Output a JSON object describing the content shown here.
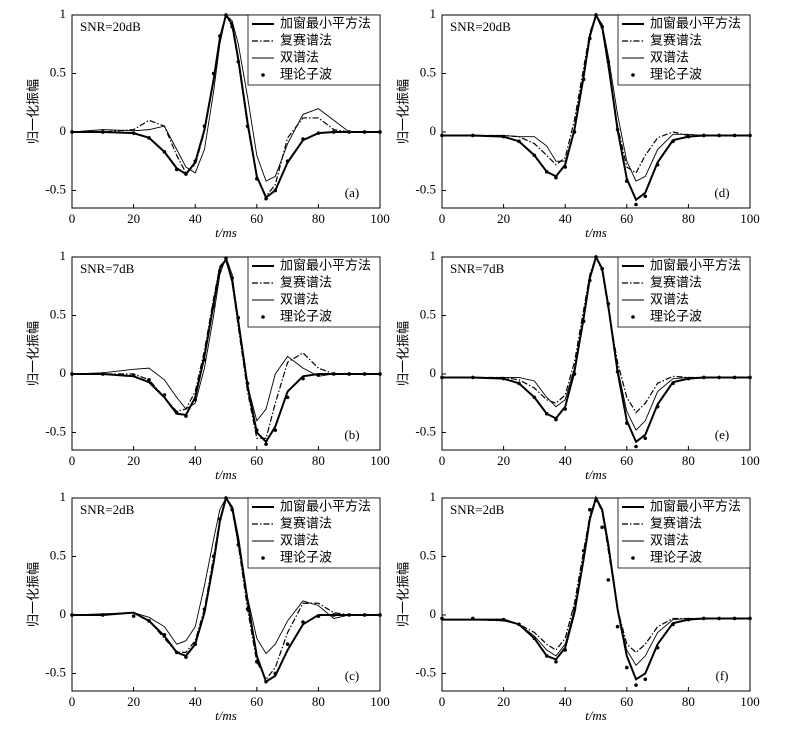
{
  "chart_data": [
    {
      "type": "line",
      "annotation": "SNR=20dB",
      "panel_label": "(a)",
      "x_label": "t/ms",
      "y_label": "归一化振幅",
      "xlim": [
        0,
        100
      ],
      "ylim": [
        -0.65,
        1
      ],
      "xticks": [
        0,
        20,
        40,
        60,
        80,
        100
      ],
      "yticks": [
        -0.5,
        0,
        0.5,
        1
      ],
      "x": [
        0,
        10,
        20,
        25,
        30,
        34,
        37,
        40,
        43,
        46,
        48,
        50,
        52,
        54,
        57,
        60,
        63,
        66,
        70,
        75,
        80,
        85,
        90,
        95,
        100
      ],
      "series": [
        {
          "name": "加窗最小平方法",
          "color": "#000000",
          "style": "thick",
          "values": [
            0,
            0,
            -0.01,
            -0.05,
            -0.17,
            -0.31,
            -0.36,
            -0.26,
            0.02,
            0.45,
            0.8,
            1,
            0.92,
            0.62,
            0.08,
            -0.38,
            -0.56,
            -0.5,
            -0.26,
            -0.07,
            -0.01,
            0,
            0,
            0,
            0
          ]
        },
        {
          "name": "复赛谱法",
          "color": "#000000",
          "style": "dashdot",
          "values": [
            0,
            0,
            0.02,
            0.1,
            0.05,
            -0.2,
            -0.35,
            -0.28,
            0,
            0.45,
            0.8,
            1,
            0.9,
            0.6,
            0.05,
            -0.38,
            -0.55,
            -0.45,
            -0.05,
            0.12,
            0.12,
            0.02,
            0,
            0,
            0
          ]
        },
        {
          "name": "双谱法",
          "color": "#000000",
          "style": "thin",
          "values": [
            0,
            0.02,
            0.01,
            0.02,
            0.05,
            -0.15,
            -0.3,
            -0.35,
            -0.15,
            0.35,
            0.75,
            1,
            0.95,
            0.75,
            0.3,
            -0.2,
            -0.42,
            -0.38,
            -0.1,
            0.15,
            0.2,
            0.1,
            0,
            0,
            0
          ]
        },
        {
          "name": "理论子波",
          "color": "#000000",
          "style": "markers",
          "values": [
            0,
            0,
            -0.01,
            -0.05,
            -0.17,
            -0.32,
            -0.36,
            -0.25,
            0.05,
            0.5,
            0.82,
            1,
            0.9,
            0.6,
            0.05,
            -0.4,
            -0.57,
            -0.5,
            -0.25,
            -0.06,
            -0.01,
            0,
            0,
            0,
            0
          ]
        }
      ]
    },
    {
      "type": "line",
      "annotation": "SNR=7dB",
      "panel_label": "(b)",
      "x_label": "t/ms",
      "y_label": "归一化振幅",
      "xlim": [
        0,
        100
      ],
      "ylim": [
        -0.65,
        1
      ],
      "xticks": [
        0,
        20,
        40,
        60,
        80,
        100
      ],
      "yticks": [
        -0.5,
        0,
        0.5,
        1
      ],
      "x": [
        0,
        10,
        20,
        25,
        30,
        34,
        37,
        40,
        43,
        46,
        48,
        50,
        52,
        54,
        57,
        60,
        63,
        66,
        70,
        75,
        80,
        85,
        90,
        95,
        100
      ],
      "series": [
        {
          "name": "加窗最小平方法",
          "color": "#000000",
          "style": "thick",
          "values": [
            0,
            0,
            -0.02,
            -0.07,
            -0.2,
            -0.34,
            -0.35,
            -0.2,
            0.15,
            0.6,
            0.9,
            0.98,
            0.8,
            0.45,
            -0.1,
            -0.5,
            -0.58,
            -0.45,
            -0.15,
            -0.02,
            0,
            0,
            0,
            0,
            0
          ]
        },
        {
          "name": "复赛谱法",
          "color": "#000000",
          "style": "dashdot",
          "values": [
            0,
            0,
            0,
            -0.05,
            -0.2,
            -0.32,
            -0.3,
            -0.15,
            0.2,
            0.65,
            0.92,
            0.98,
            0.78,
            0.4,
            -0.15,
            -0.55,
            -0.55,
            -0.25,
            0.1,
            0.18,
            0.05,
            0,
            0,
            0,
            0
          ]
        },
        {
          "name": "双谱法",
          "color": "#000000",
          "style": "thin",
          "values": [
            0,
            0.01,
            0.04,
            0.05,
            -0.05,
            -0.2,
            -0.3,
            -0.25,
            0.05,
            0.5,
            0.85,
            1,
            0.85,
            0.45,
            -0.1,
            -0.4,
            -0.3,
            0,
            0.15,
            0.05,
            -0.02,
            0,
            0,
            0,
            0
          ]
        },
        {
          "name": "理论子波",
          "color": "#000000",
          "style": "markers",
          "values": [
            0,
            0,
            -0.01,
            -0.05,
            -0.18,
            -0.33,
            -0.36,
            -0.22,
            0.12,
            0.58,
            0.88,
            0.99,
            0.82,
            0.48,
            -0.08,
            -0.48,
            -0.6,
            -0.48,
            -0.2,
            -0.04,
            -0.01,
            0,
            0,
            0,
            0
          ]
        }
      ]
    },
    {
      "type": "line",
      "annotation": "SNR=2dB",
      "panel_label": "(c)",
      "x_label": "t/ms",
      "y_label": "归一化振幅",
      "xlim": [
        0,
        100
      ],
      "ylim": [
        -0.65,
        1
      ],
      "xticks": [
        0,
        20,
        40,
        60,
        80,
        100
      ],
      "yticks": [
        -0.5,
        0,
        0.5,
        1
      ],
      "x": [
        0,
        10,
        20,
        25,
        30,
        34,
        37,
        40,
        43,
        46,
        48,
        50,
        52,
        54,
        57,
        60,
        63,
        66,
        70,
        75,
        80,
        85,
        90,
        95,
        100
      ],
      "series": [
        {
          "name": "加窗最小平方法",
          "color": "#000000",
          "style": "thick",
          "values": [
            0,
            0,
            0.02,
            -0.05,
            -0.18,
            -0.32,
            -0.35,
            -0.25,
            0.02,
            0.45,
            0.8,
            1,
            0.92,
            0.65,
            0.12,
            -0.35,
            -0.57,
            -0.52,
            -0.3,
            -0.08,
            0,
            0,
            0,
            0,
            0
          ]
        },
        {
          "name": "复赛谱法",
          "color": "#000000",
          "style": "dashdot",
          "values": [
            0,
            0,
            0.02,
            -0.05,
            -0.2,
            -0.32,
            -0.32,
            -0.22,
            0.05,
            0.5,
            0.82,
            1,
            0.9,
            0.6,
            0.05,
            -0.4,
            -0.55,
            -0.45,
            -0.15,
            0.1,
            0.1,
            0.02,
            0,
            0,
            0
          ]
        },
        {
          "name": "双谱法",
          "color": "#000000",
          "style": "thin",
          "values": [
            0,
            0.01,
            0.02,
            -0.02,
            -0.1,
            -0.25,
            -0.22,
            -0.1,
            0.25,
            0.65,
            0.9,
            1,
            0.9,
            0.6,
            0.15,
            -0.2,
            -0.33,
            -0.25,
            -0.05,
            0.12,
            0.08,
            -0.03,
            0,
            0,
            0
          ]
        },
        {
          "name": "理论子波",
          "color": "#000000",
          "style": "markers",
          "values": [
            0,
            0,
            -0.01,
            -0.05,
            -0.17,
            -0.32,
            -0.36,
            -0.25,
            0.05,
            0.5,
            0.82,
            1,
            0.9,
            0.6,
            0.05,
            -0.4,
            -0.57,
            -0.5,
            -0.25,
            -0.06,
            -0.01,
            0,
            0,
            0,
            0
          ]
        }
      ]
    },
    {
      "type": "line",
      "annotation": "SNR=20dB",
      "panel_label": "(d)",
      "x_label": "t/ms",
      "y_label": "归一化振幅",
      "xlim": [
        0,
        100
      ],
      "ylim": [
        -0.65,
        1
      ],
      "xticks": [
        0,
        20,
        40,
        60,
        80,
        100
      ],
      "yticks": [
        -0.5,
        0,
        0.5,
        1
      ],
      "x": [
        0,
        10,
        20,
        25,
        30,
        34,
        37,
        40,
        43,
        46,
        48,
        50,
        52,
        54,
        57,
        60,
        63,
        66,
        70,
        75,
        80,
        85,
        90,
        95,
        100
      ],
      "series": [
        {
          "name": "加窗最小平方法",
          "color": "#000000",
          "style": "thick",
          "values": [
            -0.03,
            -0.03,
            -0.04,
            -0.08,
            -0.2,
            -0.34,
            -0.38,
            -0.28,
            0.02,
            0.48,
            0.82,
            1,
            0.9,
            0.58,
            0.02,
            -0.4,
            -0.58,
            -0.52,
            -0.26,
            -0.07,
            -0.04,
            -0.03,
            -0.03,
            -0.03,
            -0.03
          ]
        },
        {
          "name": "复赛谱法",
          "color": "#000000",
          "style": "dashdot",
          "values": [
            -0.03,
            -0.03,
            -0.03,
            -0.04,
            -0.1,
            -0.2,
            -0.28,
            -0.22,
            0.1,
            0.55,
            0.85,
            1,
            0.88,
            0.55,
            0.05,
            -0.3,
            -0.35,
            -0.2,
            -0.05,
            0,
            -0.03,
            -0.03,
            -0.03,
            -0.03,
            -0.03
          ]
        },
        {
          "name": "双谱法",
          "color": "#000000",
          "style": "thin",
          "values": [
            -0.03,
            -0.03,
            -0.03,
            -0.04,
            -0.04,
            -0.12,
            -0.25,
            -0.25,
            0,
            0.45,
            0.8,
            1,
            0.92,
            0.65,
            0.15,
            -0.25,
            -0.42,
            -0.38,
            -0.15,
            -0.02,
            -0.02,
            -0.03,
            -0.03,
            -0.03,
            -0.03
          ]
        },
        {
          "name": "理论子波",
          "color": "#000000",
          "style": "markers",
          "values": [
            -0.03,
            -0.03,
            -0.04,
            -0.08,
            -0.2,
            -0.34,
            -0.39,
            -0.3,
            0,
            0.45,
            0.8,
            1,
            0.9,
            0.6,
            0.02,
            -0.42,
            -0.62,
            -0.55,
            -0.28,
            -0.08,
            -0.04,
            -0.03,
            -0.03,
            -0.03,
            -0.03
          ]
        }
      ]
    },
    {
      "type": "line",
      "annotation": "SNR=7dB",
      "panel_label": "(e)",
      "x_label": "t/ms",
      "y_label": "归一化振幅",
      "xlim": [
        0,
        100
      ],
      "ylim": [
        -0.65,
        1
      ],
      "xticks": [
        0,
        20,
        40,
        60,
        80,
        100
      ],
      "yticks": [
        -0.5,
        0,
        0.5,
        1
      ],
      "x": [
        0,
        10,
        20,
        25,
        30,
        34,
        37,
        40,
        43,
        46,
        48,
        50,
        52,
        54,
        57,
        60,
        63,
        66,
        70,
        75,
        80,
        85,
        90,
        95,
        100
      ],
      "series": [
        {
          "name": "加窗最小平方法",
          "color": "#000000",
          "style": "thick",
          "values": [
            -0.03,
            -0.03,
            -0.04,
            -0.08,
            -0.2,
            -0.34,
            -0.38,
            -0.28,
            0.02,
            0.48,
            0.82,
            1,
            0.9,
            0.58,
            0.02,
            -0.4,
            -0.58,
            -0.52,
            -0.26,
            -0.07,
            -0.04,
            -0.03,
            -0.03,
            -0.03,
            -0.03
          ]
        },
        {
          "name": "复赛谱法",
          "color": "#000000",
          "style": "dashdot",
          "values": [
            -0.03,
            -0.03,
            -0.03,
            -0.05,
            -0.12,
            -0.22,
            -0.25,
            -0.18,
            0.1,
            0.55,
            0.85,
            1,
            0.88,
            0.55,
            0.1,
            -0.2,
            -0.33,
            -0.25,
            -0.08,
            -0.02,
            -0.03,
            -0.03,
            -0.03,
            -0.03,
            -0.03
          ]
        },
        {
          "name": "双谱法",
          "color": "#000000",
          "style": "thin",
          "values": [
            -0.03,
            -0.03,
            -0.03,
            -0.03,
            -0.06,
            -0.2,
            -0.28,
            -0.22,
            0.05,
            0.5,
            0.82,
            1,
            0.9,
            0.6,
            0.05,
            -0.32,
            -0.48,
            -0.4,
            -0.15,
            -0.04,
            -0.03,
            -0.03,
            -0.03,
            -0.03,
            -0.03
          ]
        },
        {
          "name": "理论子波",
          "color": "#000000",
          "style": "markers",
          "values": [
            -0.03,
            -0.03,
            -0.04,
            -0.08,
            -0.2,
            -0.34,
            -0.39,
            -0.3,
            0,
            0.45,
            0.8,
            1,
            0.9,
            0.6,
            0.02,
            -0.42,
            -0.62,
            -0.55,
            -0.28,
            -0.08,
            -0.04,
            -0.03,
            -0.03,
            -0.03,
            -0.03
          ]
        }
      ]
    },
    {
      "type": "line",
      "annotation": "SNR=2dB",
      "panel_label": "(f)",
      "x_label": "t/ms",
      "y_label": "归一化振幅",
      "xlim": [
        0,
        100
      ],
      "ylim": [
        -0.65,
        1
      ],
      "xticks": [
        0,
        20,
        40,
        60,
        80,
        100
      ],
      "yticks": [
        -0.5,
        0,
        0.5,
        1
      ],
      "x": [
        0,
        10,
        20,
        25,
        30,
        34,
        37,
        40,
        43,
        46,
        48,
        50,
        52,
        54,
        57,
        60,
        63,
        66,
        70,
        75,
        80,
        85,
        90,
        95,
        100
      ],
      "series": [
        {
          "name": "加窗最小平方法",
          "color": "#000000",
          "style": "thick",
          "values": [
            -0.04,
            -0.04,
            -0.04,
            -0.08,
            -0.2,
            -0.35,
            -0.38,
            -0.28,
            0.02,
            0.48,
            0.82,
            1,
            0.9,
            0.6,
            0.05,
            -0.35,
            -0.55,
            -0.5,
            -0.25,
            -0.07,
            -0.04,
            -0.03,
            -0.03,
            -0.03,
            -0.03
          ]
        },
        {
          "name": "复赛谱法",
          "color": "#000000",
          "style": "dashdot",
          "values": [
            -0.04,
            -0.04,
            -0.05,
            -0.08,
            -0.15,
            -0.25,
            -0.3,
            -0.2,
            0.1,
            0.55,
            0.85,
            1,
            0.88,
            0.55,
            0.05,
            -0.25,
            -0.32,
            -0.25,
            -0.1,
            -0.03,
            -0.03,
            -0.03,
            -0.03,
            -0.03,
            -0.03
          ]
        },
        {
          "name": "双谱法",
          "color": "#000000",
          "style": "thin",
          "values": [
            -0.04,
            -0.04,
            -0.05,
            -0.08,
            -0.18,
            -0.3,
            -0.35,
            -0.25,
            0.05,
            0.5,
            0.83,
            1,
            0.9,
            0.58,
            0.05,
            -0.3,
            -0.43,
            -0.35,
            -0.15,
            -0.04,
            -0.03,
            -0.03,
            -0.03,
            -0.03,
            -0.03
          ]
        },
        {
          "name": "理论子波",
          "color": "#000000",
          "style": "markers",
          "values": [
            -0.03,
            -0.03,
            -0.04,
            -0.08,
            -0.2,
            -0.35,
            -0.4,
            -0.3,
            0.05,
            0.55,
            0.9,
            0.98,
            0.75,
            0.3,
            -0.1,
            -0.45,
            -0.6,
            -0.55,
            -0.28,
            -0.08,
            -0.04,
            -0.03,
            -0.03,
            -0.03,
            -0.03
          ]
        }
      ]
    }
  ]
}
